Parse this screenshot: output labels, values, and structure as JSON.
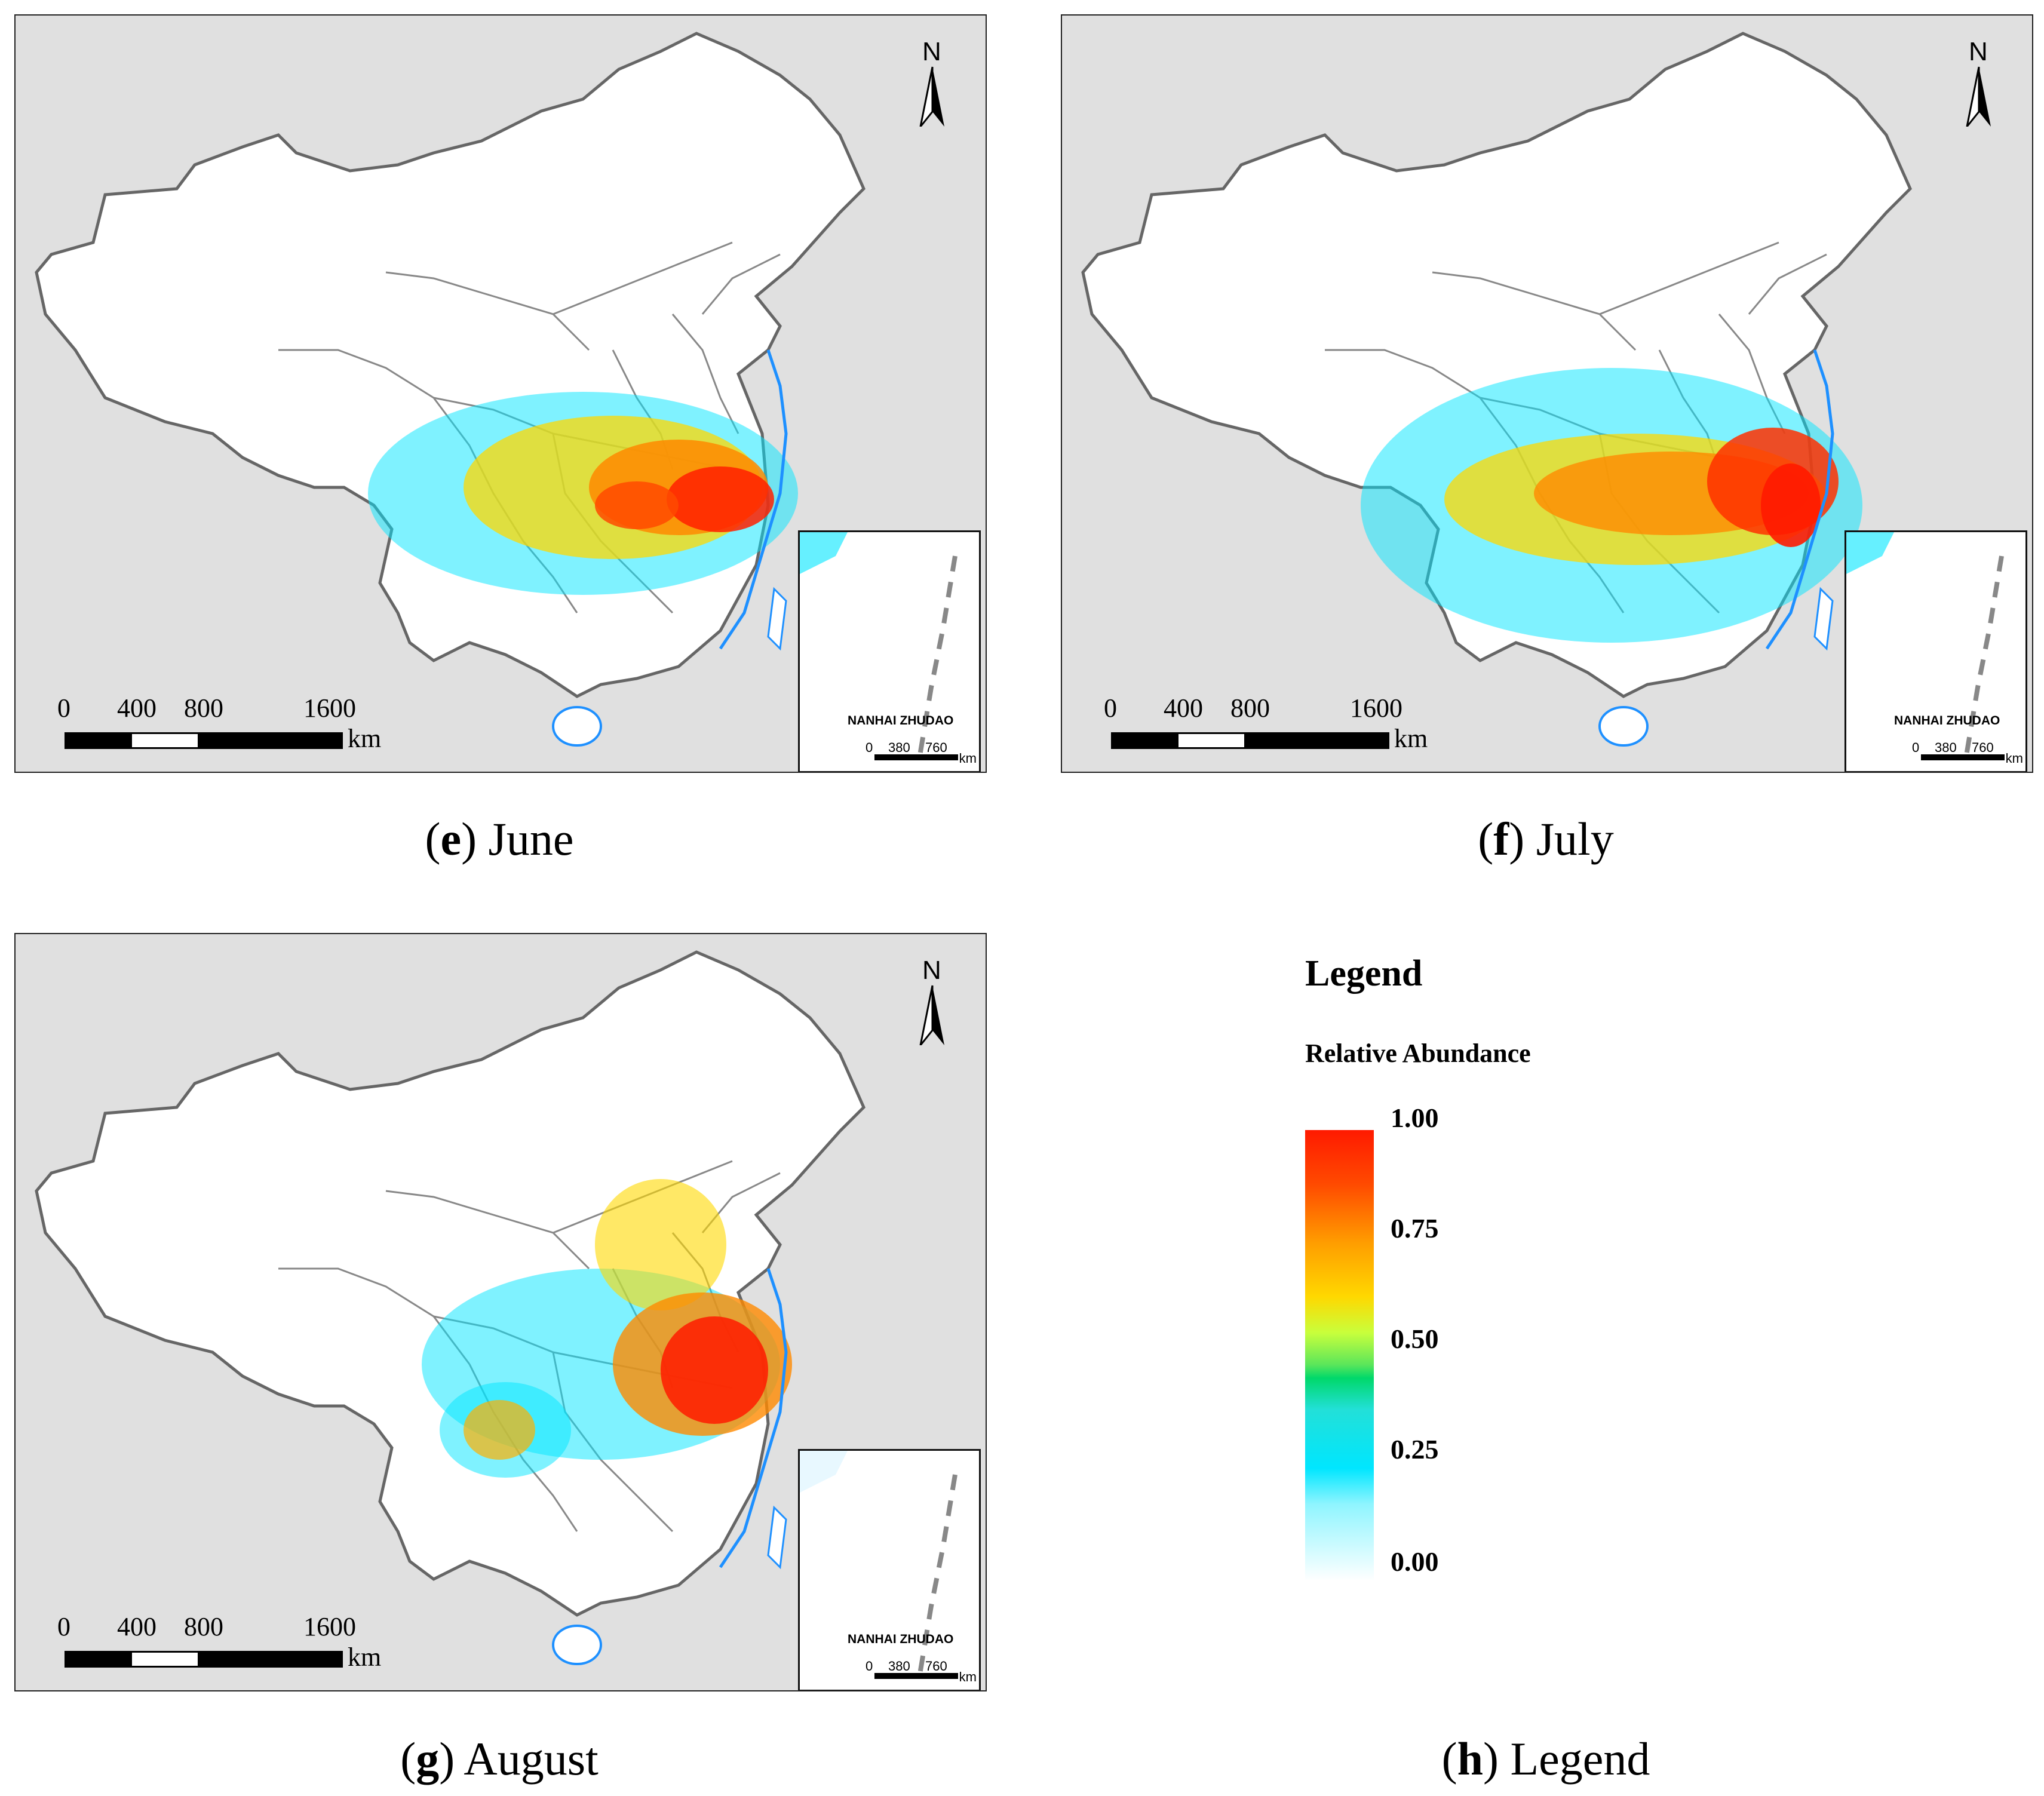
{
  "panels": [
    {
      "letter": "e",
      "month": "June"
    },
    {
      "letter": "f",
      "month": "July"
    },
    {
      "letter": "g",
      "month": "August"
    }
  ],
  "legend_panel": {
    "letter": "h",
    "label": "Legend"
  },
  "scale": {
    "ticks": [
      "0",
      "400",
      "800",
      "1600"
    ],
    "unit": "km"
  },
  "north_label": "N",
  "inset": {
    "title": "NANHAI ZHUDAO",
    "ticks": [
      "0",
      "380",
      "760"
    ],
    "unit": "km"
  },
  "legend": {
    "title": "Legend",
    "subtitle": "Relative Abundance",
    "ticks": [
      "1.00",
      "0.75",
      "0.50",
      "0.25",
      "0.00"
    ],
    "colors": [
      "#ff1a00",
      "#ff9d00",
      "#ffd800",
      "#5ce65a",
      "#00e6ff",
      "#ffffff"
    ]
  },
  "colors": {
    "land": "#ffffff",
    "neighbors": "#e0e0e0",
    "border": "#777777",
    "coast": "#1e90ff"
  }
}
